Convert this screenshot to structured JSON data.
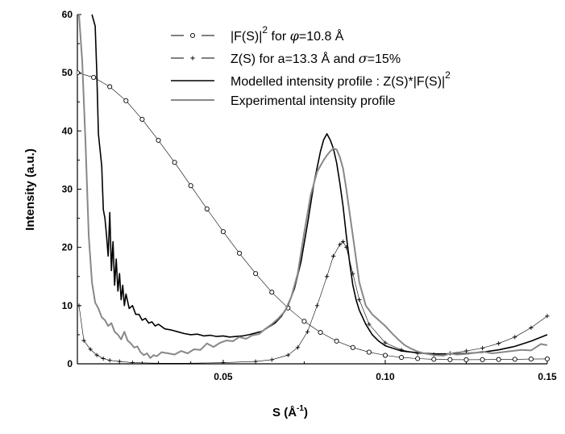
{
  "chart_data": {
    "type": "line",
    "xlabel": "S (Å-1)",
    "ylabel": "Intensity (a.u.)",
    "xlim": [
      0.005,
      0.15
    ],
    "ylim": [
      0,
      60
    ],
    "x_ticks": [
      "0.05",
      "0.10",
      "0.15"
    ],
    "y_ticks": [
      "0",
      "10",
      "20",
      "30",
      "40",
      "50",
      "60"
    ],
    "grid": false,
    "legend_placement": "top-right",
    "legend_entries": [
      {
        "text": "|F(S)|",
        "sup": "2",
        "suffix_pre": "  for ",
        "symbol": "φ",
        "suffix_post": "=10.8 Å"
      },
      {
        "text": "Z(S) for a=13.3 Å  and ",
        "symbol": "σ",
        "suffix_post": "=15%"
      },
      {
        "text": "Modelled intensity profile : Z(S)*|F(S)|",
        "sup": "2"
      },
      {
        "text": "Experimental intensity profile"
      }
    ],
    "series": [
      {
        "name": "|F(S)|2 for φ=10.8 Å",
        "style": "circle-markers",
        "color": "#000000",
        "x": [
          0.005,
          0.01,
          0.015,
          0.02,
          0.025,
          0.03,
          0.035,
          0.04,
          0.045,
          0.05,
          0.055,
          0.06,
          0.065,
          0.07,
          0.075,
          0.08,
          0.085,
          0.09,
          0.095,
          0.1,
          0.105,
          0.11,
          0.115,
          0.12,
          0.125,
          0.13,
          0.135,
          0.14,
          0.145,
          0.15
        ],
        "values": [
          50.0,
          49.2,
          47.6,
          45.2,
          42.0,
          38.4,
          34.6,
          30.6,
          26.6,
          22.7,
          19.0,
          15.5,
          12.3,
          9.6,
          7.3,
          5.4,
          3.9,
          2.8,
          2.0,
          1.45,
          1.1,
          0.9,
          0.78,
          0.72,
          0.7,
          0.72,
          0.75,
          0.78,
          0.82,
          0.85
        ]
      },
      {
        "name": "Z(S) for a=13.3 Å and σ=15%",
        "style": "plus-markers",
        "color": "#000000",
        "x": [
          0.0055,
          0.007,
          0.009,
          0.011,
          0.013,
          0.015,
          0.018,
          0.022,
          0.03,
          0.04,
          0.05,
          0.06,
          0.065,
          0.07,
          0.073,
          0.076,
          0.079,
          0.082,
          0.084,
          0.086,
          0.087,
          0.088,
          0.09,
          0.092,
          0.095,
          0.1,
          0.105,
          0.11,
          0.115,
          0.12,
          0.125,
          0.13,
          0.135,
          0.14,
          0.145,
          0.15
        ],
        "values": [
          10.0,
          4.0,
          2.5,
          1.5,
          0.9,
          0.6,
          0.4,
          0.2,
          0.1,
          0.1,
          0.2,
          0.4,
          0.7,
          1.5,
          2.8,
          5.5,
          10.0,
          15.0,
          18.5,
          20.5,
          21.0,
          20.0,
          15.5,
          11.0,
          6.8,
          3.6,
          2.4,
          1.8,
          1.6,
          1.8,
          2.2,
          2.7,
          3.5,
          4.6,
          6.2,
          8.2
        ]
      },
      {
        "name": "Modelled intensity profile : Z(S)*|F(S)|2",
        "style": "line",
        "color": "#000000",
        "width": 1.6,
        "x": [
          0.0095,
          0.0105,
          0.011,
          0.0115,
          0.0125,
          0.013,
          0.0135,
          0.014,
          0.0145,
          0.015,
          0.0155,
          0.016,
          0.0165,
          0.017,
          0.0175,
          0.018,
          0.0185,
          0.019,
          0.0195,
          0.02,
          0.021,
          0.022,
          0.023,
          0.024,
          0.025,
          0.026,
          0.027,
          0.028,
          0.029,
          0.03,
          0.032,
          0.034,
          0.036,
          0.038,
          0.04,
          0.042,
          0.044,
          0.046,
          0.048,
          0.05,
          0.052,
          0.054,
          0.056,
          0.058,
          0.06,
          0.062,
          0.064,
          0.066,
          0.068,
          0.07,
          0.072,
          0.074,
          0.076,
          0.078,
          0.08,
          0.081,
          0.082,
          0.083,
          0.084,
          0.085,
          0.086,
          0.087,
          0.088,
          0.089,
          0.09,
          0.091,
          0.092,
          0.094,
          0.096,
          0.098,
          0.1,
          0.105,
          0.11,
          0.115,
          0.12,
          0.125,
          0.13,
          0.135,
          0.14,
          0.145,
          0.15
        ],
        "values": [
          60.0,
          58.0,
          50.0,
          39.5,
          34.0,
          26.5,
          25.0,
          22.0,
          18.5,
          26.0,
          16.0,
          21.0,
          13.5,
          18.0,
          12.5,
          15.5,
          11.0,
          13.5,
          10.0,
          12.0,
          9.5,
          10.0,
          8.5,
          8.5,
          7.5,
          7.8,
          7.0,
          7.2,
          6.5,
          6.8,
          6.0,
          5.8,
          5.5,
          5.2,
          5.0,
          5.1,
          4.8,
          4.9,
          4.7,
          4.8,
          4.6,
          4.7,
          4.8,
          5.0,
          5.3,
          5.6,
          6.3,
          7.0,
          8.2,
          10.0,
          13.0,
          17.5,
          24.0,
          31.0,
          36.5,
          38.5,
          39.5,
          38.5,
          37.0,
          34.5,
          31.0,
          27.0,
          22.0,
          17.5,
          13.5,
          11.0,
          9.2,
          6.8,
          5.0,
          3.9,
          3.1,
          2.2,
          1.9,
          1.7,
          1.7,
          1.8,
          2.0,
          2.4,
          3.0,
          3.9,
          5.0
        ]
      },
      {
        "name": "Experimental intensity profile",
        "style": "line",
        "color": "#888888",
        "width": 2.0,
        "x": [
          0.0055,
          0.0065,
          0.0075,
          0.0085,
          0.0095,
          0.0105,
          0.0115,
          0.0125,
          0.0135,
          0.0145,
          0.0155,
          0.0165,
          0.0175,
          0.0185,
          0.0195,
          0.0205,
          0.0215,
          0.0225,
          0.0235,
          0.0245,
          0.0255,
          0.0265,
          0.0275,
          0.0285,
          0.0295,
          0.031,
          0.033,
          0.035,
          0.037,
          0.039,
          0.041,
          0.043,
          0.045,
          0.047,
          0.049,
          0.051,
          0.053,
          0.055,
          0.057,
          0.059,
          0.061,
          0.063,
          0.065,
          0.067,
          0.069,
          0.071,
          0.073,
          0.075,
          0.077,
          0.079,
          0.081,
          0.082,
          0.083,
          0.084,
          0.085,
          0.086,
          0.087,
          0.088,
          0.089,
          0.09,
          0.091,
          0.092,
          0.094,
          0.096,
          0.098,
          0.1,
          0.102,
          0.104,
          0.106,
          0.108,
          0.11,
          0.112,
          0.115,
          0.118,
          0.12,
          0.122,
          0.125,
          0.128,
          0.13,
          0.133,
          0.136,
          0.139,
          0.142,
          0.145,
          0.148,
          0.15
        ],
        "values": [
          60.0,
          52.0,
          38.0,
          22.0,
          14.0,
          10.5,
          9.5,
          8.0,
          7.5,
          6.5,
          7.0,
          5.5,
          5.0,
          4.2,
          5.5,
          4.0,
          3.5,
          2.8,
          3.0,
          2.0,
          1.5,
          1.8,
          1.0,
          1.5,
          1.3,
          2.0,
          1.8,
          1.6,
          2.2,
          1.8,
          2.5,
          2.4,
          3.5,
          2.9,
          3.6,
          4.0,
          3.9,
          4.6,
          4.3,
          4.9,
          5.1,
          6.0,
          6.8,
          7.8,
          9.0,
          11.5,
          15.5,
          22.5,
          29.0,
          33.0,
          35.0,
          35.8,
          36.5,
          37.0,
          36.8,
          35.5,
          33.5,
          30.0,
          26.0,
          22.0,
          18.0,
          14.0,
          10.0,
          8.5,
          7.5,
          6.5,
          5.3,
          4.2,
          3.2,
          2.6,
          2.1,
          1.8,
          1.5,
          1.4,
          1.8,
          1.6,
          1.7,
          1.9,
          2.1,
          1.8,
          2.0,
          2.2,
          2.4,
          2.3,
          3.4,
          3.2
        ]
      }
    ]
  }
}
